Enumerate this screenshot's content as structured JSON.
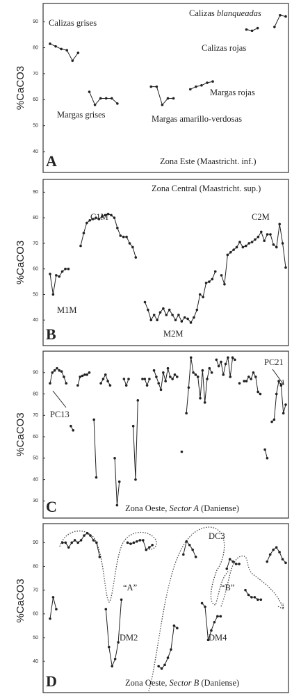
{
  "chart_data": [
    {
      "type": "line",
      "ylabel": "%CaCO3",
      "panel": "A",
      "color": "#222",
      "ylim": [
        32,
        97
      ],
      "yticks": [
        40,
        50,
        60,
        70,
        80,
        90
      ],
      "values": [
        81.5,
        80.5,
        79.5,
        79,
        75,
        78,
        null,
        63,
        58,
        60.5,
        60.5,
        60.5,
        58.5,
        null,
        null,
        null,
        null,
        null,
        65,
        65,
        58,
        60.5,
        60.5,
        null,
        null,
        64,
        65,
        65.5,
        66.5,
        67,
        null,
        null,
        null,
        null,
        null,
        87,
        86.5,
        87.5,
        null,
        null,
        88,
        92.5,
        92
      ],
      "annotations": [
        "Calizas grises",
        "Margas grises",
        "Margas amarillo-verdosas",
        "Margas rojas",
        "Calizas rojas",
        [
          "Calizas ",
          "blanqueadas"
        ],
        "Zona Este (Maastricht. inf.)"
      ]
    },
    {
      "type": "line",
      "ylabel": "%CaCO3",
      "panel": "B",
      "color": "#222",
      "ylim": [
        30,
        95
      ],
      "yticks": [
        40,
        50,
        60,
        70,
        80,
        90
      ],
      "values": [
        58,
        50,
        57.5,
        57,
        59,
        60,
        60,
        null,
        null,
        null,
        69,
        74,
        78,
        79,
        79.5,
        80,
        79.5,
        80.5,
        81,
        81.5,
        81,
        80,
        76,
        73,
        72.5,
        72.5,
        70,
        68.5,
        64.5,
        null,
        null,
        47,
        44,
        40,
        42,
        40,
        43,
        44.5,
        42,
        44,
        42,
        40,
        42,
        39.5,
        41,
        40.5,
        39,
        41,
        44,
        50,
        49,
        54.5,
        55,
        56,
        59,
        null,
        57.5,
        54,
        65.5,
        66.5,
        67.5,
        68.5,
        70.5,
        68.5,
        69,
        70,
        70.5,
        71.5,
        72.5,
        74.5,
        71,
        73.5,
        73.5,
        69.5,
        68.5,
        77.5,
        70,
        60.5
      ],
      "annotations": [
        "Zona Central (Maastricht. sup.)",
        "C1M",
        "C2M",
        "M1M",
        "M2M"
      ]
    },
    {
      "type": "line",
      "ylabel": "%CaCO3",
      "panel": "C",
      "color": "#222",
      "ylim": [
        22,
        100
      ],
      "yticks": [
        30,
        40,
        50,
        60,
        70,
        80,
        90
      ],
      "values": [
        85,
        90,
        91,
        92,
        91,
        90.5,
        88,
        85,
        null,
        65,
        63,
        null,
        84,
        88,
        88.5,
        89,
        89,
        90,
        null,
        68,
        41,
        null,
        85,
        87,
        89,
        86,
        84,
        null,
        50,
        28,
        39,
        null,
        87,
        84,
        87,
        null,
        65,
        40,
        77,
        null,
        87,
        87,
        84,
        87,
        null,
        91,
        88,
        85,
        82,
        90,
        86,
        92,
        88,
        87,
        89,
        88,
        null,
        53,
        null,
        71,
        83,
        97,
        90,
        89,
        88,
        78,
        91,
        76,
        87,
        92,
        90,
        null,
        96,
        93,
        95,
        89,
        94,
        97,
        88,
        97,
        96,
        null,
        85,
        null,
        86,
        86,
        88,
        87,
        90,
        88,
        81,
        80,
        null,
        54,
        50,
        null,
        67,
        68,
        80,
        86,
        84,
        71,
        75
      ],
      "annotations": [
        "PC13",
        "PC21",
        [
          "Zona Oeste, ",
          "Sector A",
          " (Daniense)"
        ]
      ]
    },
    {
      "type": "line",
      "ylabel": "%CaCO3",
      "panel": "D",
      "color": "#222",
      "ylim": [
        33,
        98
      ],
      "yticks": [
        40,
        50,
        60,
        70,
        80,
        90
      ],
      "values": [
        58,
        67,
        62,
        null,
        90,
        90,
        88,
        90,
        91,
        90,
        91,
        93,
        94,
        93,
        91,
        90,
        84,
        null,
        62,
        46,
        38,
        41,
        48,
        66,
        null,
        90,
        89.5,
        90,
        90.5,
        91,
        91,
        87,
        88,
        89,
        null,
        38,
        37,
        38.5,
        41.5,
        45,
        55,
        54,
        null,
        85,
        90.5,
        89,
        87,
        84,
        null,
        64.5,
        63,
        49,
        53,
        56.5,
        59,
        59,
        null,
        79,
        83,
        82,
        81,
        81,
        null,
        70,
        68,
        67,
        67,
        66,
        66,
        null,
        82,
        85,
        87,
        88,
        86,
        83,
        81.5
      ],
      "annotations": [
        "DC3",
        "“A”",
        "“B”",
        "DM2",
        "DM4",
        [
          "Zona Oeste, ",
          "Sector B",
          " (Daniense)"
        ]
      ]
    }
  ]
}
